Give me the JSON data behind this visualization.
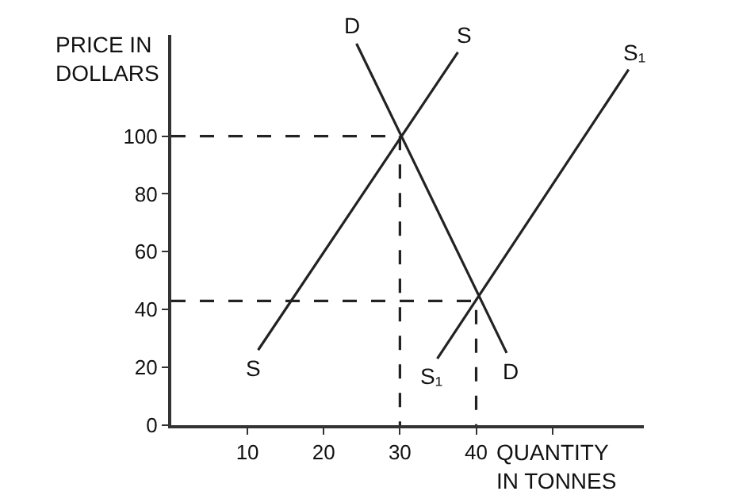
{
  "chart_data": {
    "type": "line",
    "xlabel": "QUANTITY\nIN TONNES",
    "ylabel": "PRICE IN\nDOLLARS",
    "xlim": [
      0,
      62
    ],
    "ylim": [
      0,
      135
    ],
    "xticks": [
      10,
      20,
      30,
      40,
      {
        "value": 50,
        "label": null
      }
    ],
    "yticks": [
      0,
      20,
      40,
      60,
      80,
      100
    ],
    "grid": false,
    "legend": false,
    "marker": "none",
    "series": [
      {
        "name": "D",
        "color": "#222222",
        "x": [
          24.3,
          44
        ],
        "values": [
          132,
          25
        ],
        "line_style": "solid"
      },
      {
        "name": "S",
        "color": "#222222",
        "x": [
          11.4,
          37.6
        ],
        "values": [
          26,
          129
        ],
        "line_style": "solid"
      },
      {
        "name": "S₁",
        "color": "#222222",
        "x": [
          34.9,
          60
        ],
        "values": [
          23,
          123
        ],
        "line_style": "solid"
      },
      {
        "color": "#222222",
        "x": [
          0,
          30,
          30
        ],
        "values": [
          100,
          100,
          0
        ],
        "line_style": "dashed"
      },
      {
        "color": "#222222",
        "x": [
          0,
          40,
          40
        ],
        "values": [
          43,
          43,
          0
        ],
        "line_style": "dashed"
      }
    ]
  }
}
